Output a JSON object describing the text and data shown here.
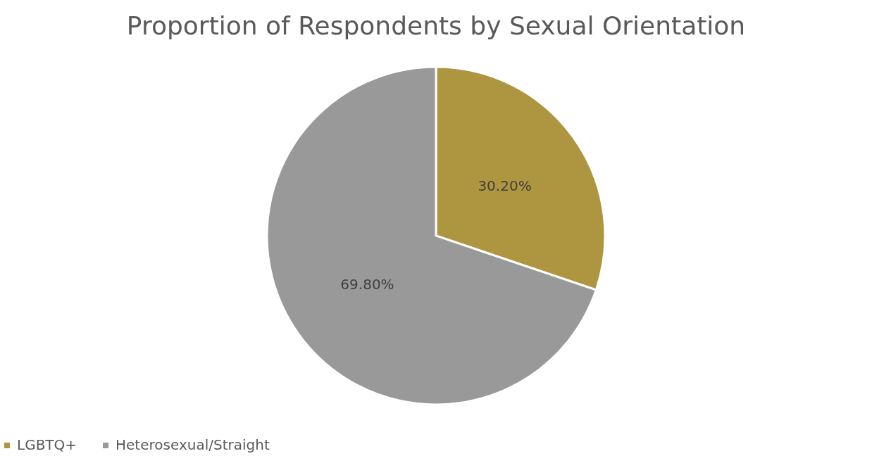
{
  "chart_data": {
    "type": "pie",
    "title": "Proportion of Respondents by Sexual Orientation",
    "categories": [
      "LGBTQ+",
      "Heterosexual/Straight"
    ],
    "values": [
      30.2,
      69.8
    ],
    "colors": [
      "#ae9640",
      "#999999"
    ],
    "value_labels": [
      "30.20%",
      "69.80%"
    ],
    "legend": "bottom"
  }
}
